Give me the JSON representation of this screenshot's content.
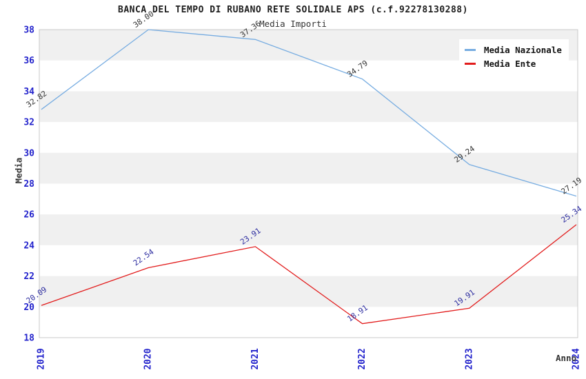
{
  "header": {
    "title": "BANCA DEL TEMPO DI RUBANO RETE SOLIDALE APS (c.f.92278130288)",
    "subtitle": "Media Importi"
  },
  "axes": {
    "x_label": "Anno",
    "y_label": "Media",
    "x_ticks": [
      "2019",
      "2020",
      "2021",
      "2022",
      "2023",
      "2024"
    ],
    "y_ticks": [
      18,
      20,
      22,
      24,
      26,
      28,
      30,
      32,
      34,
      36,
      38
    ]
  },
  "legend": {
    "position": "top-right",
    "items": [
      {
        "label": "Media Nazionale",
        "color": "#76ace1"
      },
      {
        "label": "Media Ente",
        "color": "#e21b1b"
      }
    ]
  },
  "chart_data": {
    "type": "line",
    "title": "Media Importi",
    "xlabel": "Anno",
    "ylabel": "Media",
    "x": [
      2019,
      2020,
      2021,
      2022,
      2023,
      2024
    ],
    "ylim": [
      18,
      38
    ],
    "ytick_step": 2,
    "grid": "alternating-horizontal-bands",
    "legend_position": "top-right",
    "series": [
      {
        "name": "Media Nazionale",
        "color": "#76ace1",
        "label_color": "#333333",
        "values": [
          32.82,
          38.0,
          37.36,
          34.79,
          29.24,
          27.19
        ]
      },
      {
        "name": "Media Ente",
        "color": "#e21b1b",
        "label_color": "#2d2da0",
        "values": [
          20.09,
          22.54,
          23.91,
          18.91,
          19.91,
          25.34
        ]
      }
    ],
    "colors": {
      "tick_label": "#2222cc",
      "band_gray": "#f0f0f0",
      "plot_border": "#c9c9c9"
    }
  }
}
